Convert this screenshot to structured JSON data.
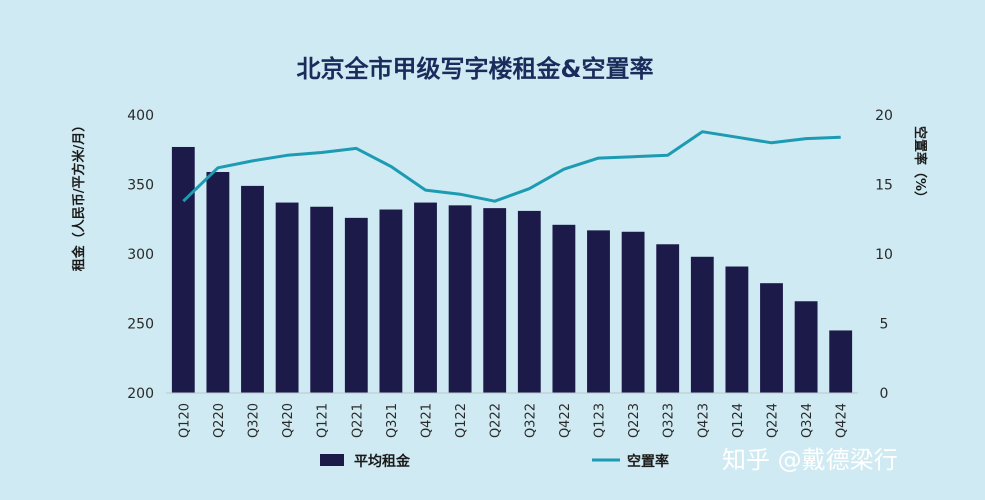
{
  "chart_data": {
    "type": "bar",
    "title": "北京全市甲级写字楼租金&空置率",
    "categories": [
      "Q120",
      "Q220",
      "Q320",
      "Q420",
      "Q121",
      "Q221",
      "Q321",
      "Q421",
      "Q122",
      "Q222",
      "Q322",
      "Q422",
      "Q123",
      "Q223",
      "Q323",
      "Q423",
      "Q124",
      "Q224",
      "Q324",
      "Q424"
    ],
    "ylabel": "租金（人民币/平方米/月）",
    "y2label": "空置率（%）",
    "ylim": [
      200,
      400
    ],
    "yticks": [
      200,
      250,
      300,
      350,
      400
    ],
    "y2lim": [
      0,
      20
    ],
    "y2ticks": [
      0,
      5,
      10,
      15,
      20
    ],
    "grid": false,
    "legend_position": "bottom",
    "series": [
      {
        "name": "平均租金",
        "type": "bar",
        "axis": "left",
        "color": "#1c1a48",
        "values": [
          377,
          359,
          349,
          337,
          334,
          326,
          332,
          337,
          335,
          333,
          331,
          321,
          317,
          316,
          307,
          298,
          291,
          279,
          266,
          245
        ]
      },
      {
        "name": "空置率",
        "type": "line",
        "axis": "right",
        "color": "#1c9bb3",
        "values": [
          13.8,
          16.2,
          16.7,
          17.1,
          17.3,
          17.6,
          16.3,
          14.6,
          14.3,
          13.8,
          14.7,
          16.1,
          16.9,
          17.0,
          17.1,
          18.8,
          18.4,
          18.0,
          18.3,
          18.4
        ]
      }
    ]
  },
  "watermark": "知乎 @戴德梁行"
}
